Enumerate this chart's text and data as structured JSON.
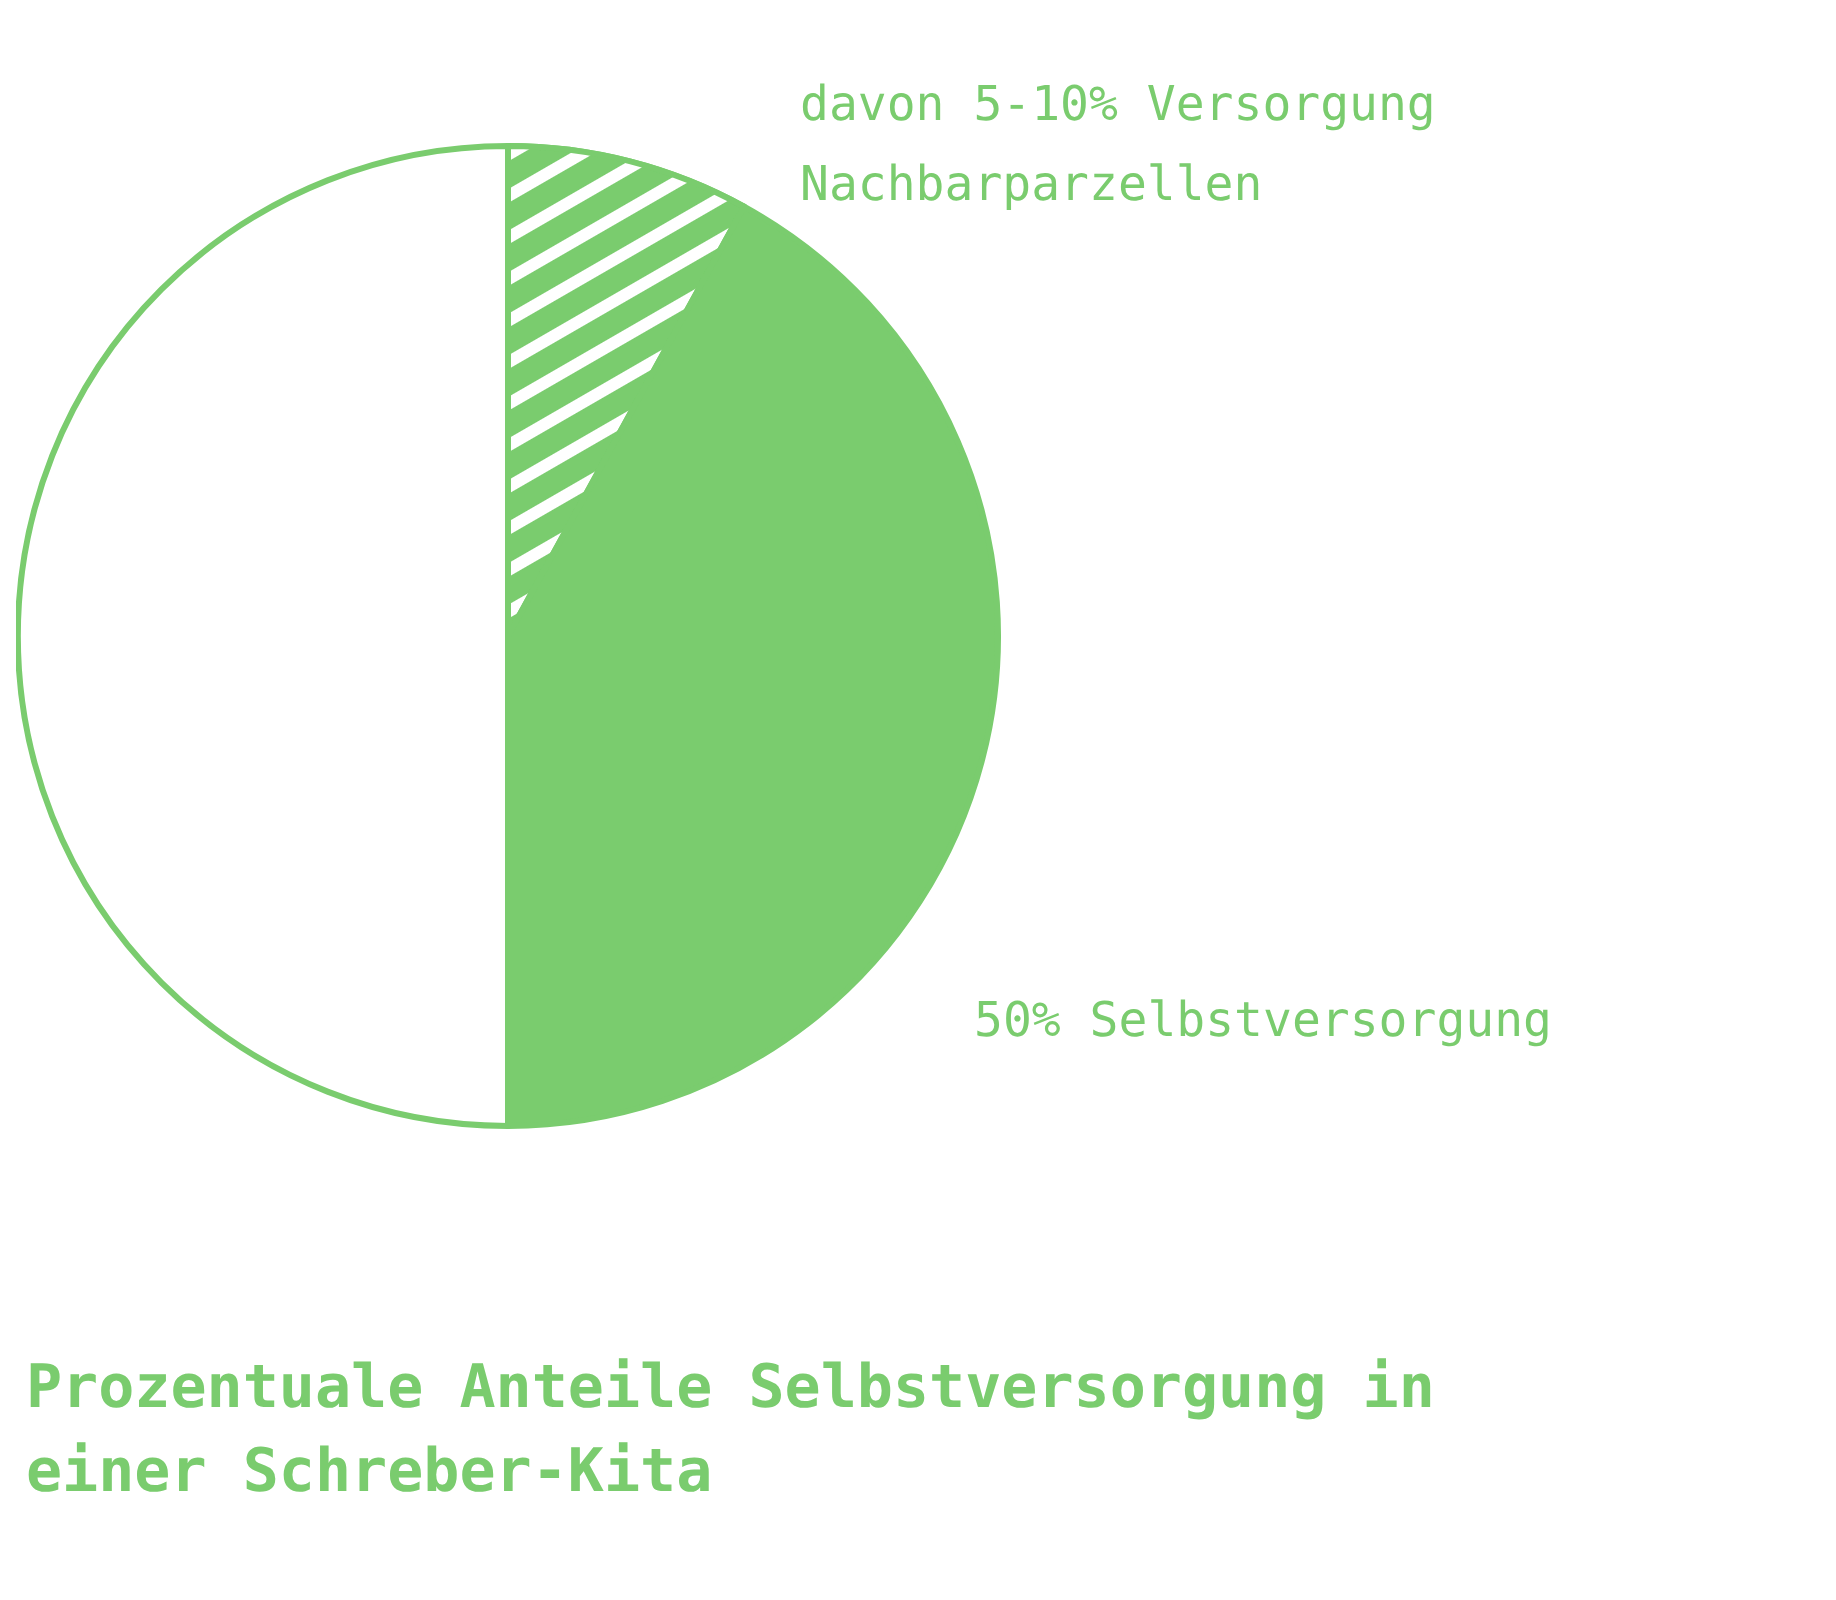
{
  "chart_data": {
    "type": "pie",
    "title": "Prozentuale Anteile Selbstversorgung in einer Schreber-Kita",
    "categories": [
      "davon 5-10% Versorgung Nachbarparzellen",
      "50% Selbstversorgung",
      null
    ],
    "values": [
      8,
      42,
      50
    ],
    "colors": [
      "#7acc6e",
      "#7acc6e",
      "#ffffff"
    ],
    "legend": false
  }
}
